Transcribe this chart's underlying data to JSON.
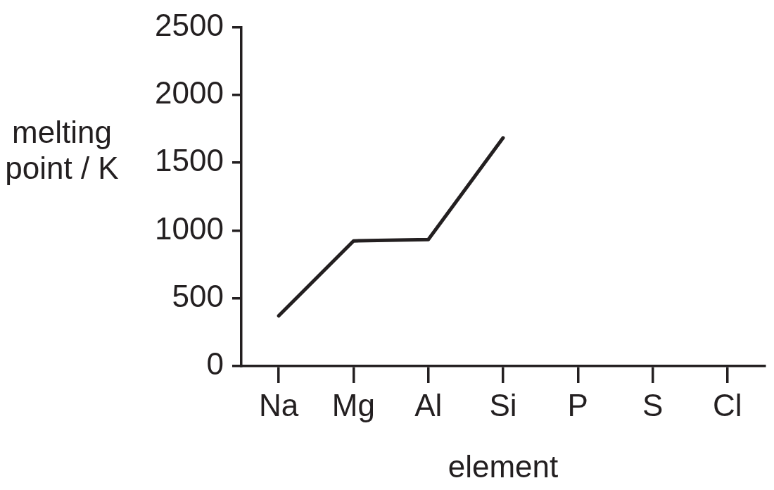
{
  "chart_data": {
    "type": "line",
    "categories": [
      "Na",
      "Mg",
      "Al",
      "Si",
      "P",
      "S",
      "Cl"
    ],
    "series": [
      {
        "color": "#231f20",
        "values": [
          371,
          923,
          933,
          1683,
          null,
          null,
          null
        ]
      }
    ],
    "xlabel": "element",
    "ylabel": "melting point / K",
    "ylim": [
      0,
      2500
    ],
    "yticks": [
      0,
      500,
      1000,
      1500,
      2000,
      2500
    ],
    "marker": "none",
    "line_style": "solid"
  }
}
